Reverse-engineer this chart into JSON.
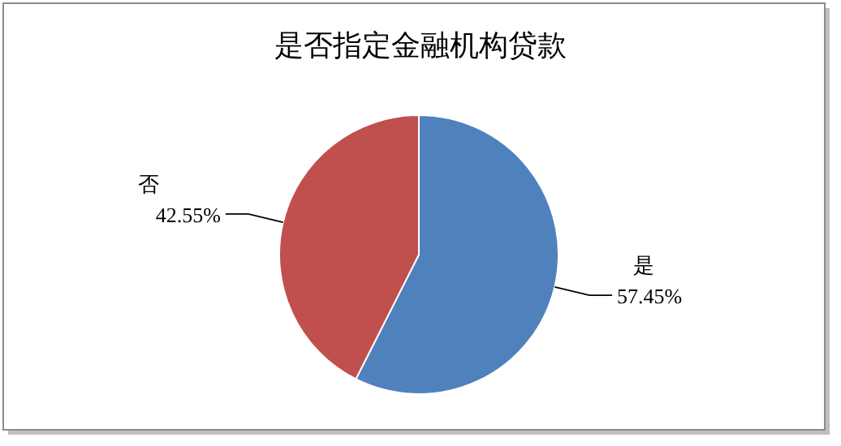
{
  "chart_data": {
    "type": "pie",
    "title": "是否指定金融机构贷款",
    "categories": [
      "是",
      "否"
    ],
    "values": [
      57.45,
      42.55
    ],
    "colors": [
      "#4f81bd",
      "#c0504d"
    ],
    "value_labels": [
      "57.45%",
      "42.55%"
    ]
  }
}
